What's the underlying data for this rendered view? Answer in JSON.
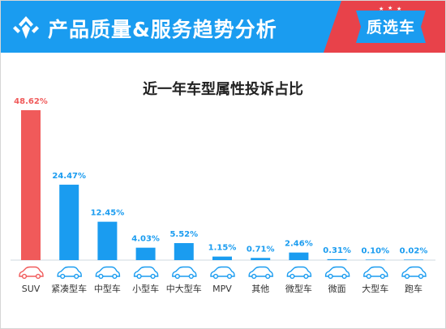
{
  "header": {
    "title": "产品质量&服务趋势分析",
    "badge": "质选车",
    "color": "#1a9cf0",
    "badge_color": "#e8424a"
  },
  "chart_data": {
    "type": "bar",
    "title": "近一年车型属性投诉占比",
    "categories": [
      "SUV",
      "紧凑型车",
      "中型车",
      "小型车",
      "中大型车",
      "MPV",
      "其他",
      "微型车",
      "微面",
      "大型车",
      "跑车"
    ],
    "values": [
      48.62,
      24.47,
      12.45,
      4.03,
      5.52,
      1.15,
      0.71,
      2.46,
      0.31,
      0.1,
      0.02
    ],
    "value_labels": [
      "48.62%",
      "24.47%",
      "12.45%",
      "4.03%",
      "5.52%",
      "1.15%",
      "0.71%",
      "2.46%",
      "0.31%",
      "0.10%",
      "0.02%"
    ],
    "unit": "%",
    "ylim": [
      0,
      50
    ],
    "grid": false,
    "legend": "none",
    "colors": {
      "default": "#1a9cf0",
      "highlight": "#f05a5a",
      "axis": "#cfd8e0"
    },
    "highlight_index": 0,
    "category_icon": "car-icon"
  }
}
